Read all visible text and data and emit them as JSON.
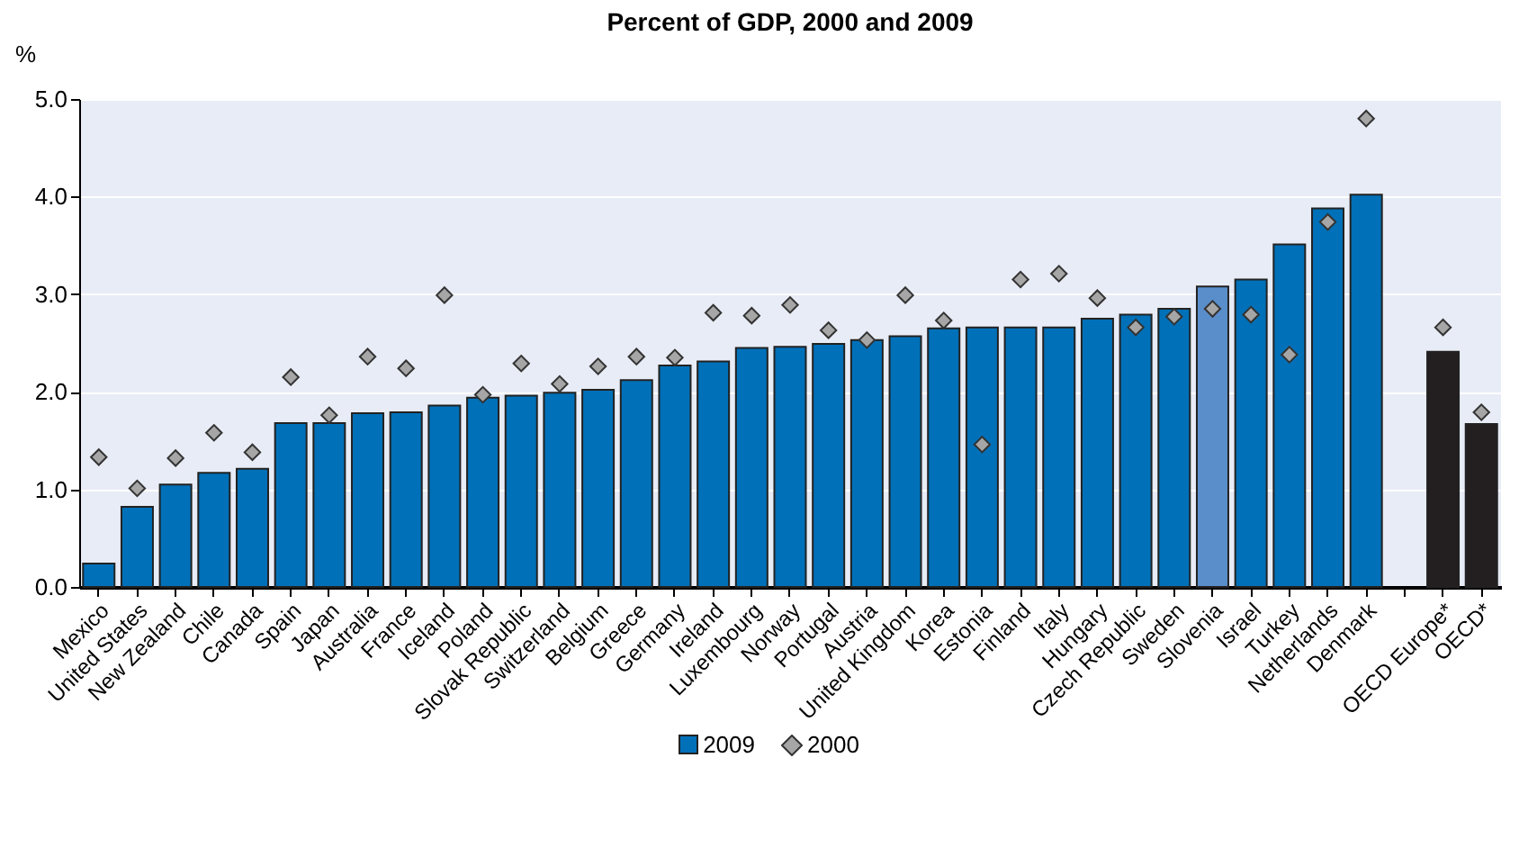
{
  "chart_data": {
    "type": "bar",
    "title": "Percent of GDP, 2000 and 2009",
    "ylabel": "%",
    "categories": [
      "Mexico",
      "United States",
      "New Zealand",
      "Chile",
      "Canada",
      "Spain",
      "Japan",
      "Australia",
      "France",
      "Iceland",
      "Poland",
      "Slovak Republic",
      "Switzerland",
      "Belgium",
      "Greece",
      "Germany",
      "Ireland",
      "Luxembourg",
      "Norway",
      "Portugal",
      "Austria",
      "United Kingdom",
      "Korea",
      "Estonia",
      "Finland",
      "Italy",
      "Hungary",
      "Czech Republic",
      "Sweden",
      "Slovenia",
      "Israel",
      "Turkey",
      "Netherlands",
      "Denmark",
      null,
      "OECD Europe*",
      "OECD*"
    ],
    "series": [
      {
        "name": "2009",
        "color": "#0070b8",
        "values": [
          0.24,
          0.82,
          1.05,
          1.17,
          1.21,
          1.68,
          1.68,
          1.78,
          1.79,
          1.86,
          1.94,
          1.96,
          1.99,
          2.02,
          2.12,
          2.27,
          2.31,
          2.45,
          2.46,
          2.49,
          2.53,
          2.57,
          2.65,
          2.66,
          2.66,
          2.66,
          2.75,
          2.79,
          2.85,
          3.08,
          3.15,
          3.51,
          3.88,
          4.02,
          null,
          2.41,
          1.67
        ],
        "colors": [
          "#0070b8",
          "#0070b8",
          "#0070b8",
          "#0070b8",
          "#0070b8",
          "#0070b8",
          "#0070b8",
          "#0070b8",
          "#0070b8",
          "#0070b8",
          "#0070b8",
          "#0070b8",
          "#0070b8",
          "#0070b8",
          "#0070b8",
          "#0070b8",
          "#0070b8",
          "#0070b8",
          "#0070b8",
          "#0070b8",
          "#0070b8",
          "#0070b8",
          "#0070b8",
          "#0070b8",
          "#0070b8",
          "#0070b8",
          "#0070b8",
          "#0070b8",
          "#0070b8",
          "#5a8ecb",
          "#0070b8",
          "#0070b8",
          "#0070b8",
          "#0070b8",
          "#0070b8",
          "#231f20",
          "#231f20"
        ]
      },
      {
        "name": "2000",
        "type": "scatter",
        "color": "#a6a6a6",
        "values": [
          1.33,
          1.01,
          1.32,
          1.58,
          1.38,
          2.15,
          1.76,
          2.36,
          2.24,
          2.99,
          1.97,
          2.29,
          2.08,
          2.26,
          2.36,
          2.35,
          2.81,
          2.78,
          2.89,
          2.63,
          2.53,
          2.99,
          2.73,
          1.46,
          3.15,
          3.21,
          2.96,
          2.66,
          2.77,
          2.85,
          2.79,
          2.38,
          3.74,
          4.8,
          null,
          2.66,
          1.79
        ]
      }
    ],
    "marker": "diamond",
    "ylim": [
      0,
      5
    ],
    "yticks": [
      {
        "value": 0,
        "label": "0.0"
      },
      {
        "value": 1,
        "label": "1.0"
      },
      {
        "value": 2,
        "label": "2.0"
      },
      {
        "value": 3,
        "label": "3.0"
      },
      {
        "value": 4,
        "label": "4.0"
      },
      {
        "value": 5,
        "label": "5.0"
      }
    ],
    "grid": "y",
    "legend": "bottom"
  }
}
